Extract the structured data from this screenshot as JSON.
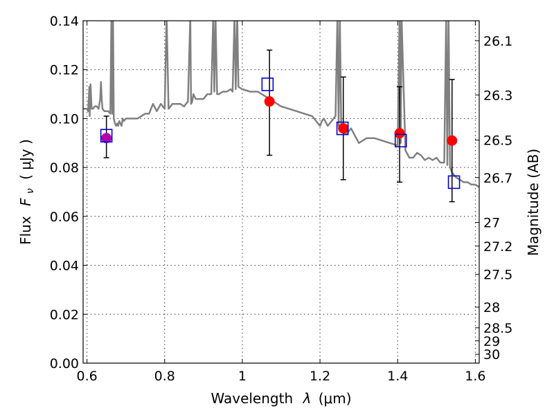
{
  "chart_data": {
    "type": "scatter",
    "xlabel": "Wavelength",
    "xlabel_symbol": "λ",
    "xlabel_unit": "(μm)",
    "ylabel": "Flux",
    "ylabel_symbol": "F",
    "ylabel_sub": "ν",
    "ylabel_unit": "( μJy )",
    "y2label": "Magnitude (AB)",
    "xlim": [
      0.59,
      1.61
    ],
    "ylim": [
      0.0,
      0.14
    ],
    "grid": true,
    "x_ticks": [
      0.6,
      0.8,
      1.0,
      1.2,
      1.4,
      1.6
    ],
    "x_tick_labels": [
      "0.6",
      "0.8",
      "1",
      "1.2",
      "1.4",
      "1.6"
    ],
    "y_ticks": [
      0.0,
      0.02,
      0.04,
      0.06,
      0.08,
      0.1,
      0.12,
      0.14
    ],
    "y_tick_labels": [
      "0.00",
      "0.02",
      "0.04",
      "0.06",
      "0.08",
      "0.10",
      "0.12",
      "0.14"
    ],
    "y2_ticks": [
      26.1,
      26.3,
      26.5,
      26.7,
      27,
      27.2,
      27.5,
      28,
      28.5,
      29,
      30
    ],
    "y2_tick_labels": [
      "26.1",
      "26.3",
      "26.5",
      "26.7",
      "27",
      "27.2",
      "27.5",
      "28",
      "28.5",
      "29",
      "30"
    ],
    "colors": {
      "spectrum": "#808080",
      "observed": "#ff0000",
      "model": "#0000cc",
      "errorbar": "#000000",
      "overlap": "#b000b0"
    },
    "series": [
      {
        "kind": "model_spectrum",
        "x": [
          0.59,
          0.6,
          0.603,
          0.606,
          0.607,
          0.609,
          0.612,
          0.615,
          0.62,
          0.625,
          0.63,
          0.634,
          0.636,
          0.638,
          0.64,
          0.645,
          0.65,
          0.655,
          0.66,
          0.663,
          0.665,
          0.667,
          0.669,
          0.672,
          0.675,
          0.678,
          0.68,
          0.683,
          0.686,
          0.689,
          0.692,
          0.695,
          0.7,
          0.71,
          0.72,
          0.73,
          0.74,
          0.75,
          0.76,
          0.77,
          0.78,
          0.79,
          0.8,
          0.805,
          0.81,
          0.815,
          0.82,
          0.83,
          0.84,
          0.85,
          0.86,
          0.866,
          0.868,
          0.871,
          0.874,
          0.88,
          0.89,
          0.9,
          0.91,
          0.92,
          0.925,
          0.928,
          0.931,
          0.935,
          0.94,
          0.95,
          0.96,
          0.97,
          0.975,
          0.98,
          0.983,
          0.987,
          0.99,
          1.0,
          1.02,
          1.04,
          1.06,
          1.08,
          1.1,
          1.12,
          1.14,
          1.16,
          1.18,
          1.19,
          1.2,
          1.205,
          1.21,
          1.22,
          1.23,
          1.24,
          1.245,
          1.248,
          1.251,
          1.255,
          1.26,
          1.27,
          1.28,
          1.29,
          1.3,
          1.32,
          1.34,
          1.36,
          1.38,
          1.4,
          1.405,
          1.408,
          1.41,
          1.42,
          1.43,
          1.44,
          1.45,
          1.46,
          1.47,
          1.48,
          1.49,
          1.5,
          1.51,
          1.52,
          1.525,
          1.528,
          1.531,
          1.535,
          1.54,
          1.55,
          1.56,
          1.57,
          1.58,
          1.59,
          1.6,
          1.61
        ],
        "y": [
          0.104,
          0.104,
          0.103,
          0.113,
          0.101,
          0.114,
          0.104,
          0.104,
          0.105,
          0.105,
          0.104,
          0.108,
          0.115,
          0.108,
          0.104,
          0.103,
          0.103,
          0.103,
          0.102,
          0.142,
          0.102,
          0.142,
          0.1,
          0.098,
          0.097,
          0.098,
          0.097,
          0.099,
          0.098,
          0.097,
          0.1,
          0.099,
          0.1,
          0.1,
          0.1,
          0.1,
          0.101,
          0.102,
          0.102,
          0.106,
          0.103,
          0.106,
          0.104,
          0.142,
          0.104,
          0.105,
          0.106,
          0.106,
          0.106,
          0.105,
          0.107,
          0.142,
          0.106,
          0.107,
          0.11,
          0.108,
          0.108,
          0.108,
          0.11,
          0.11,
          0.142,
          0.111,
          0.142,
          0.11,
          0.11,
          0.111,
          0.111,
          0.112,
          0.111,
          0.142,
          0.112,
          0.142,
          0.113,
          0.112,
          0.111,
          0.111,
          0.109,
          0.107,
          0.105,
          0.104,
          0.103,
          0.102,
          0.101,
          0.099,
          0.097,
          0.099,
          0.1,
          0.097,
          0.099,
          0.101,
          0.142,
          0.097,
          0.142,
          0.095,
          0.094,
          0.094,
          0.096,
          0.093,
          0.09,
          0.092,
          0.092,
          0.091,
          0.09,
          0.089,
          0.142,
          0.09,
          0.142,
          0.087,
          0.084,
          0.084,
          0.086,
          0.085,
          0.083,
          0.084,
          0.083,
          0.084,
          0.082,
          0.082,
          0.142,
          0.081,
          0.142,
          0.08,
          0.078,
          0.076,
          0.075,
          0.074,
          0.074,
          0.073,
          0.073,
          0.072
        ]
      },
      {
        "name": "observed",
        "x": [
          0.65,
          1.07,
          1.26,
          1.405,
          1.54
        ],
        "y": [
          0.092,
          0.107,
          0.096,
          0.094,
          0.091
        ],
        "yerr_low": [
          0.084,
          0.085,
          0.075,
          0.074,
          0.066
        ],
        "yerr_high": [
          0.101,
          0.128,
          0.117,
          0.113,
          0.116
        ]
      },
      {
        "name": "model",
        "x": [
          0.65,
          1.065,
          1.258,
          1.408,
          1.545
        ],
        "y": [
          0.093,
          0.114,
          0.096,
          0.091,
          0.074
        ]
      }
    ]
  }
}
